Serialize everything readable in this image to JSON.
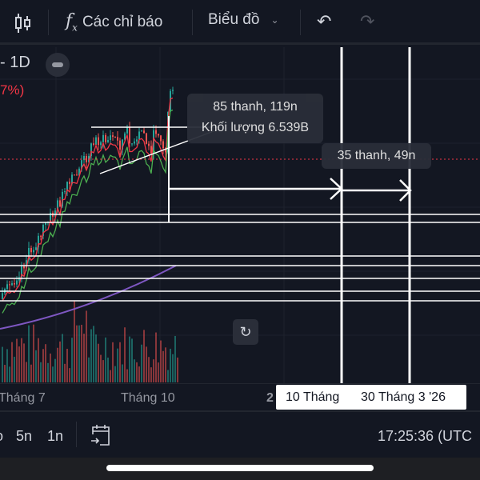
{
  "toolbar": {
    "indicators_label": "Các chỉ báo",
    "chart_label": "Biểu đồ"
  },
  "legend": {
    "interval": "- 1D",
    "change": "7%)"
  },
  "measure": {
    "bars_1": "85 thanh, 119n",
    "volume": "Khối lượng 6.539B",
    "bars_2": "35 thanh, 49n"
  },
  "time_axis": {
    "ticks": [
      "Tháng 7",
      "Tháng 10",
      "2"
    ],
    "range_start": "10 Tháng",
    "range_end": "30 Tháng 3 '26"
  },
  "bottom": {
    "ranges": [
      "o",
      "5n",
      "1n"
    ],
    "clock": "17:25:36 (UTC"
  },
  "colors": {
    "up": "#26a69a",
    "down": "#ef5350",
    "ma_red": "#f23645",
    "ma_green": "#4caf50",
    "ma_purple": "#7e57c2"
  }
}
